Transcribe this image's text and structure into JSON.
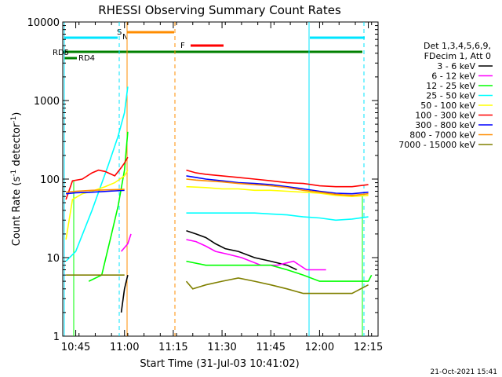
{
  "chart_data": {
    "type": "line",
    "title": "RHESSI Observing Summary Count Rates",
    "xlabel": "Start Time (31-Jul-03 10:41:02)",
    "ylabel_main": "Count Rate (s",
    "ylabel_sup1": "-1",
    "ylabel_mid": " detector",
    "ylabel_sup2": "-1",
    "ylabel_end": ")",
    "y_scale": "log",
    "ylim": [
      1,
      10000
    ],
    "xlim": [
      "10:41",
      "12:18"
    ],
    "x_ticks": [
      "10:45",
      "11:00",
      "11:15",
      "11:30",
      "11:45",
      "12:00",
      "12:15"
    ],
    "y_ticks": [
      "1",
      "10",
      "100",
      "1000",
      "10000"
    ],
    "legend_header": [
      "Det 1,3,4,5,6,9,",
      "FDecim 1, Att 0"
    ],
    "legend_position": "right",
    "footer": "21-Oct-2021 15:41",
    "series": [
      {
        "name": "3 - 6 keV",
        "color": "#000000",
        "points": [
          [
            "10:59",
            2
          ],
          [
            "11:00",
            4
          ],
          [
            "11:01",
            6
          ],
          [
            "11:19",
            22
          ],
          [
            "11:22",
            20
          ],
          [
            "11:25",
            18
          ],
          [
            "11:28",
            15
          ],
          [
            "11:31",
            13
          ],
          [
            "11:35",
            12
          ],
          [
            "11:40",
            10
          ],
          [
            "11:45",
            9
          ],
          [
            "11:50",
            8
          ],
          [
            "11:53",
            7
          ]
        ]
      },
      {
        "name": "6 - 12 keV",
        "color": "#ff00ff",
        "points": [
          [
            "10:59",
            12
          ],
          [
            "11:01",
            15
          ],
          [
            "11:02",
            20
          ],
          [
            "11:19",
            17
          ],
          [
            "11:22",
            16
          ],
          [
            "11:25",
            14
          ],
          [
            "11:28",
            12
          ],
          [
            "11:32",
            11
          ],
          [
            "11:36",
            10
          ],
          [
            "11:42",
            8
          ],
          [
            "11:47",
            8
          ],
          [
            "11:52",
            9
          ],
          [
            "11:56",
            7
          ],
          [
            "12:02",
            7
          ]
        ]
      },
      {
        "name": "12 - 25 keV",
        "color": "#00ff00",
        "points": [
          [
            "10:49",
            5
          ],
          [
            "10:53",
            6
          ],
          [
            "10:56",
            20
          ],
          [
            "10:58",
            45
          ],
          [
            "11:00",
            130
          ],
          [
            "11:01",
            400
          ],
          [
            "11:19",
            9
          ],
          [
            "11:25",
            8
          ],
          [
            "11:30",
            8
          ],
          [
            "11:35",
            8
          ],
          [
            "11:40",
            8
          ],
          [
            "11:45",
            8
          ],
          [
            "11:50",
            7
          ],
          [
            "11:55",
            6
          ],
          [
            "12:00",
            5
          ],
          [
            "12:05",
            5
          ],
          [
            "12:10",
            5
          ],
          [
            "12:15",
            5
          ],
          [
            "12:16",
            6
          ]
        ]
      },
      {
        "name": "25 - 50 keV",
        "color": "#00ffff",
        "points": [
          [
            "10:42",
            9
          ],
          [
            "10:45",
            12
          ],
          [
            "10:50",
            40
          ],
          [
            "10:55",
            150
          ],
          [
            "10:58",
            350
          ],
          [
            "11:00",
            700
          ],
          [
            "11:01",
            1500
          ],
          [
            "11:19",
            37
          ],
          [
            "11:25",
            37
          ],
          [
            "11:30",
            37
          ],
          [
            "11:35",
            37
          ],
          [
            "11:40",
            37
          ],
          [
            "11:45",
            36
          ],
          [
            "11:50",
            35
          ],
          [
            "11:55",
            33
          ],
          [
            "12:00",
            32
          ],
          [
            "12:05",
            30
          ],
          [
            "12:10",
            31
          ],
          [
            "12:15",
            33
          ]
        ]
      },
      {
        "name": "50 - 100 keV",
        "color": "#ffff00",
        "points": [
          [
            "10:42",
            17
          ],
          [
            "10:44",
            55
          ],
          [
            "10:47",
            65
          ],
          [
            "10:50",
            70
          ],
          [
            "10:54",
            80
          ],
          [
            "10:57",
            90
          ],
          [
            "11:00",
            110
          ],
          [
            "11:01",
            130
          ],
          [
            "11:19",
            80
          ],
          [
            "11:25",
            78
          ],
          [
            "11:30",
            75
          ],
          [
            "11:35",
            75
          ],
          [
            "11:40",
            72
          ],
          [
            "11:45",
            72
          ],
          [
            "11:50",
            70
          ],
          [
            "11:55",
            68
          ],
          [
            "12:00",
            66
          ],
          [
            "12:05",
            62
          ],
          [
            "12:10",
            60
          ],
          [
            "12:15",
            62
          ]
        ]
      },
      {
        "name": "100 - 300 keV",
        "color": "#ff0000",
        "points": [
          [
            "10:42",
            55
          ],
          [
            "10:44",
            95
          ],
          [
            "10:47",
            100
          ],
          [
            "10:50",
            120
          ],
          [
            "10:52",
            130
          ],
          [
            "10:54",
            125
          ],
          [
            "10:57",
            110
          ],
          [
            "10:59",
            140
          ],
          [
            "11:00",
            160
          ],
          [
            "11:01",
            190
          ],
          [
            "11:19",
            130
          ],
          [
            "11:22",
            120
          ],
          [
            "11:25",
            115
          ],
          [
            "11:30",
            110
          ],
          [
            "11:35",
            105
          ],
          [
            "11:40",
            100
          ],
          [
            "11:45",
            95
          ],
          [
            "11:50",
            90
          ],
          [
            "11:55",
            88
          ],
          [
            "12:00",
            82
          ],
          [
            "12:05",
            80
          ],
          [
            "12:10",
            80
          ],
          [
            "12:15",
            85
          ]
        ]
      },
      {
        "name": "300 - 800 keV",
        "color": "#0000ff",
        "points": [
          [
            "10:42",
            65
          ],
          [
            "10:45",
            67
          ],
          [
            "10:50",
            68
          ],
          [
            "10:55",
            70
          ],
          [
            "11:00",
            72
          ],
          [
            "11:19",
            110
          ],
          [
            "11:22",
            105
          ],
          [
            "11:25",
            100
          ],
          [
            "11:30",
            95
          ],
          [
            "11:35",
            90
          ],
          [
            "11:40",
            88
          ],
          [
            "11:45",
            85
          ],
          [
            "11:50",
            80
          ],
          [
            "11:55",
            75
          ],
          [
            "12:00",
            70
          ],
          [
            "12:05",
            66
          ],
          [
            "12:10",
            65
          ],
          [
            "12:15",
            68
          ]
        ]
      },
      {
        "name": "800 - 7000 keV",
        "color": "#ff8c00",
        "points": [
          [
            "10:42",
            68
          ],
          [
            "10:45",
            70
          ],
          [
            "10:50",
            72
          ],
          [
            "10:55",
            73
          ],
          [
            "11:00",
            74
          ],
          [
            "11:19",
            100
          ],
          [
            "11:22",
            97
          ],
          [
            "11:25",
            95
          ],
          [
            "11:30",
            92
          ],
          [
            "11:35",
            88
          ],
          [
            "11:40",
            85
          ],
          [
            "11:45",
            82
          ],
          [
            "11:50",
            78
          ],
          [
            "11:55",
            72
          ],
          [
            "12:00",
            68
          ],
          [
            "12:05",
            64
          ],
          [
            "12:10",
            62
          ],
          [
            "12:15",
            65
          ]
        ]
      },
      {
        "name": "7000 - 15000 keV",
        "color": "#808000",
        "points": [
          [
            "10:42",
            6
          ],
          [
            "10:45",
            6
          ],
          [
            "10:50",
            6
          ],
          [
            "10:55",
            6
          ],
          [
            "11:00",
            6
          ],
          [
            "11:19",
            5
          ],
          [
            "11:21",
            4
          ],
          [
            "11:25",
            4.5
          ],
          [
            "11:30",
            5
          ],
          [
            "11:35",
            5.5
          ],
          [
            "11:40",
            5
          ],
          [
            "11:45",
            4.5
          ],
          [
            "11:50",
            4
          ],
          [
            "11:55",
            3.5
          ],
          [
            "12:00",
            3.5
          ],
          [
            "12:05",
            3.5
          ],
          [
            "12:10",
            3.5
          ],
          [
            "12:15",
            4.5
          ]
        ]
      }
    ],
    "flag_labels": {
      "RD5": "RD5",
      "RD4": "RD4",
      "S": "S",
      "N": "N",
      "F": "F"
    }
  }
}
